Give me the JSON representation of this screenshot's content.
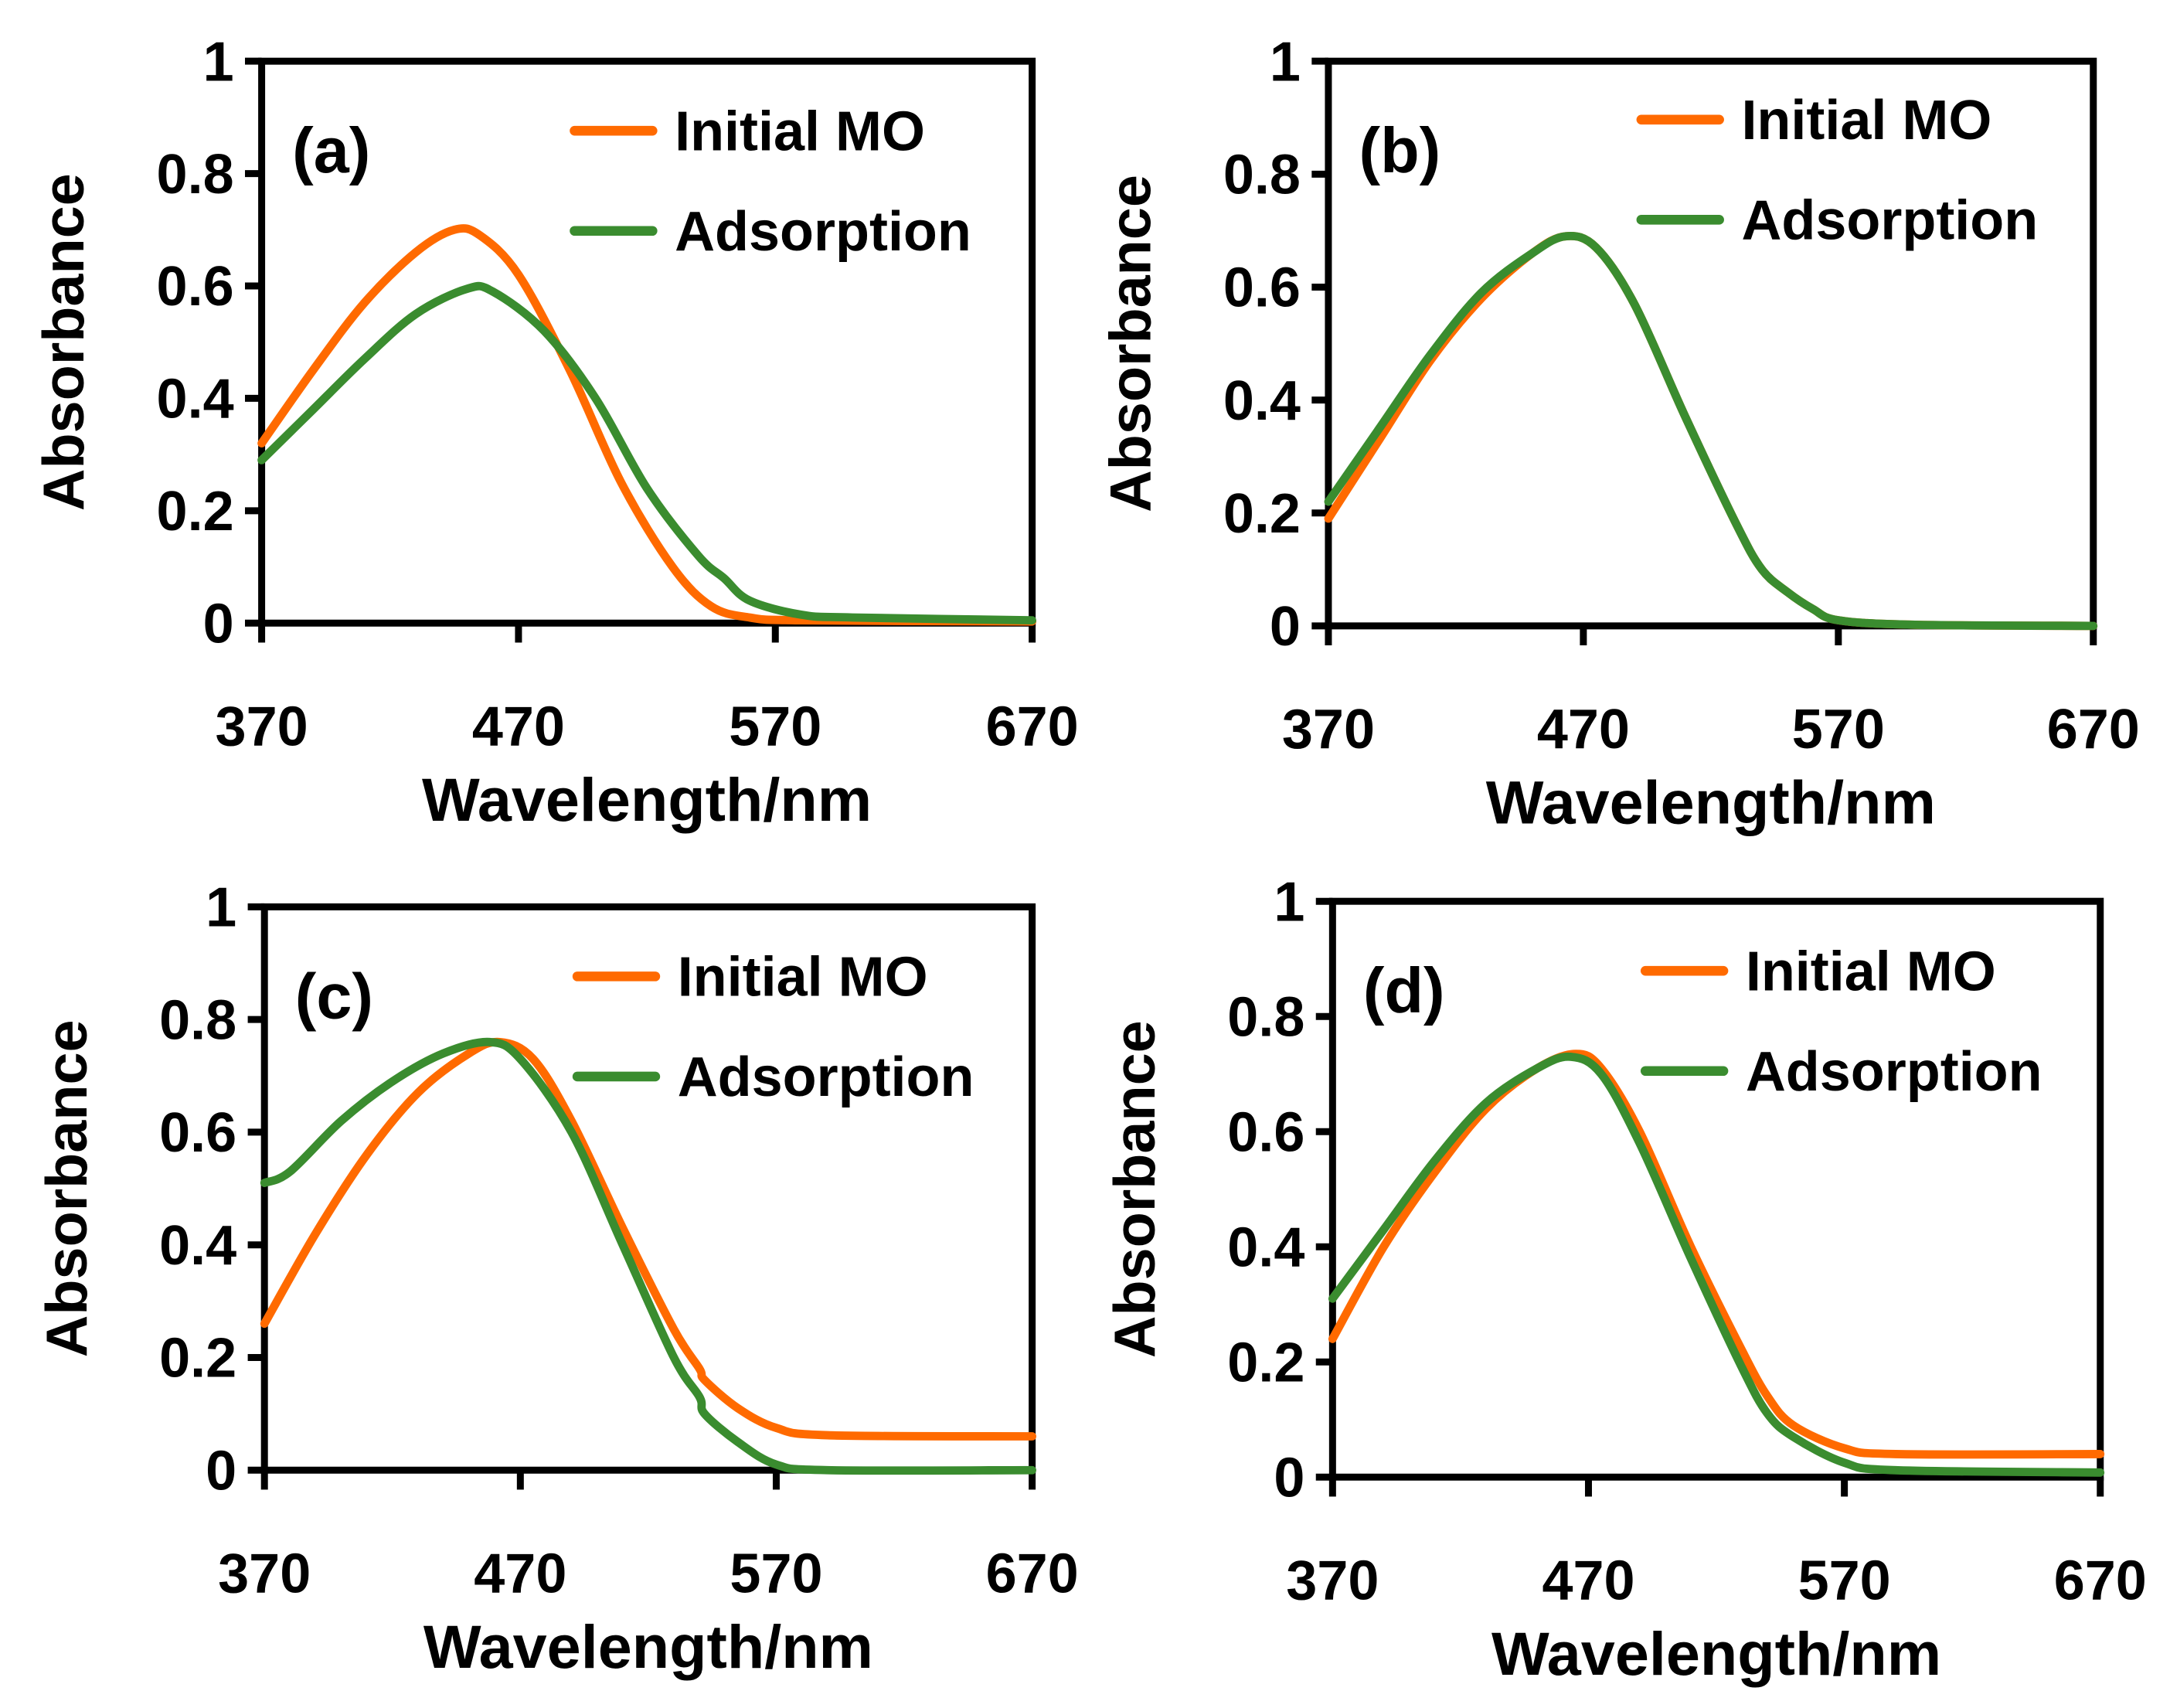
{
  "colors": {
    "initial": "#FF6A00",
    "adsorption": "#3A8C2F",
    "axis": "#000000"
  },
  "chart_data": [
    {
      "type": "line",
      "panel_label": "(a)",
      "xlabel": "Wavelength/nm",
      "ylabel": "Absorbance",
      "xlim": [
        370,
        670
      ],
      "ylim": [
        0,
        1
      ],
      "xticks": [
        "370",
        "470",
        "570",
        "670"
      ],
      "yticks": [
        "0",
        "0.2",
        "0.4",
        "0.6",
        "0.8",
        "1"
      ],
      "legend": [
        "Initial MO",
        "Adsorption"
      ],
      "legend_position": "top-right",
      "series": [
        {
          "name": "Initial MO",
          "x": [
            370,
            390,
            410,
            430,
            445,
            455,
            470,
            490,
            510,
            530,
            545,
            560,
            580,
            670
          ],
          "y": [
            0.32,
            0.45,
            0.57,
            0.66,
            0.7,
            0.69,
            0.62,
            0.45,
            0.25,
            0.1,
            0.03,
            0.01,
            0.005,
            0.003
          ]
        },
        {
          "name": "Adsorption",
          "x": [
            370,
            390,
            410,
            430,
            450,
            460,
            480,
            500,
            520,
            540,
            550,
            560,
            580,
            600,
            670
          ],
          "y": [
            0.29,
            0.38,
            0.47,
            0.55,
            0.595,
            0.59,
            0.52,
            0.4,
            0.24,
            0.12,
            0.08,
            0.04,
            0.015,
            0.01,
            0.005
          ]
        }
      ]
    },
    {
      "type": "line",
      "panel_label": "(b)",
      "xlabel": "Wavelength/nm",
      "ylabel": "Absorbance",
      "xlim": [
        370,
        670
      ],
      "ylim": [
        0,
        1
      ],
      "xticks": [
        "370",
        "470",
        "570",
        "670"
      ],
      "yticks": [
        "0",
        "0.2",
        "0.4",
        "0.6",
        "0.8",
        "1"
      ],
      "legend": [
        "Initial MO",
        "Adsorption"
      ],
      "legend_position": "top-right",
      "series": [
        {
          "name": "Initial MO",
          "x": [
            370,
            390,
            410,
            430,
            450,
            463,
            475,
            490,
            510,
            530,
            540,
            550,
            560,
            570,
            600,
            670
          ],
          "y": [
            0.19,
            0.33,
            0.47,
            0.58,
            0.66,
            0.69,
            0.67,
            0.57,
            0.37,
            0.18,
            0.1,
            0.06,
            0.03,
            0.01,
            0.002,
            0.0
          ]
        },
        {
          "name": "Adsorption",
          "x": [
            370,
            390,
            410,
            430,
            450,
            463,
            475,
            490,
            510,
            530,
            540,
            550,
            560,
            570,
            600,
            670
          ],
          "y": [
            0.22,
            0.35,
            0.48,
            0.59,
            0.66,
            0.69,
            0.67,
            0.57,
            0.37,
            0.18,
            0.1,
            0.06,
            0.03,
            0.01,
            0.002,
            0.0
          ]
        }
      ]
    },
    {
      "type": "line",
      "panel_label": "(c)",
      "xlabel": "Wavelength/nm",
      "ylabel": "Absorbance",
      "xlim": [
        370,
        670
      ],
      "ylim": [
        0,
        1
      ],
      "xticks": [
        "370",
        "470",
        "570",
        "670"
      ],
      "yticks": [
        "0",
        "0.2",
        "0.4",
        "0.6",
        "0.8",
        "1"
      ],
      "legend": [
        "Initial MO",
        "Adsorption"
      ],
      "legend_position": "top-right",
      "series": [
        {
          "name": "Initial MO",
          "x": [
            370,
            390,
            410,
            430,
            450,
            462,
            475,
            490,
            510,
            530,
            540,
            542,
            555,
            570,
            590,
            670
          ],
          "y": [
            0.26,
            0.42,
            0.56,
            0.67,
            0.74,
            0.76,
            0.73,
            0.62,
            0.43,
            0.25,
            0.18,
            0.16,
            0.11,
            0.075,
            0.062,
            0.06
          ]
        },
        {
          "name": "Adsorption",
          "x": [
            370,
            380,
            400,
            420,
            440,
            458,
            470,
            490,
            510,
            530,
            540,
            542,
            555,
            570,
            590,
            670
          ],
          "y": [
            0.51,
            0.53,
            0.62,
            0.69,
            0.74,
            0.76,
            0.73,
            0.6,
            0.4,
            0.2,
            0.13,
            0.1,
            0.05,
            0.01,
            0.0,
            0.0
          ]
        }
      ]
    },
    {
      "type": "line",
      "panel_label": "(d)",
      "xlabel": "Wavelength/nm",
      "ylabel": "Absorbance",
      "xlim": [
        370,
        670
      ],
      "ylim": [
        0,
        1
      ],
      "xticks": [
        "370",
        "470",
        "570",
        "670"
      ],
      "yticks": [
        "0",
        "0.2",
        "0.4",
        "0.6",
        "0.8",
        "1"
      ],
      "legend": [
        "Initial MO",
        "Adsorption"
      ],
      "legend_position": "top-right",
      "series": [
        {
          "name": "Initial MO",
          "x": [
            370,
            390,
            410,
            430,
            450,
            465,
            475,
            490,
            510,
            530,
            540,
            550,
            570,
            590,
            670
          ],
          "y": [
            0.24,
            0.4,
            0.53,
            0.64,
            0.71,
            0.735,
            0.71,
            0.6,
            0.4,
            0.22,
            0.14,
            0.09,
            0.05,
            0.04,
            0.04
          ]
        },
        {
          "name": "Adsorption",
          "x": [
            370,
            390,
            410,
            430,
            450,
            463,
            475,
            490,
            510,
            530,
            540,
            550,
            570,
            590,
            670
          ],
          "y": [
            0.31,
            0.43,
            0.55,
            0.65,
            0.71,
            0.73,
            0.7,
            0.58,
            0.38,
            0.19,
            0.11,
            0.07,
            0.025,
            0.012,
            0.008
          ]
        }
      ]
    }
  ]
}
